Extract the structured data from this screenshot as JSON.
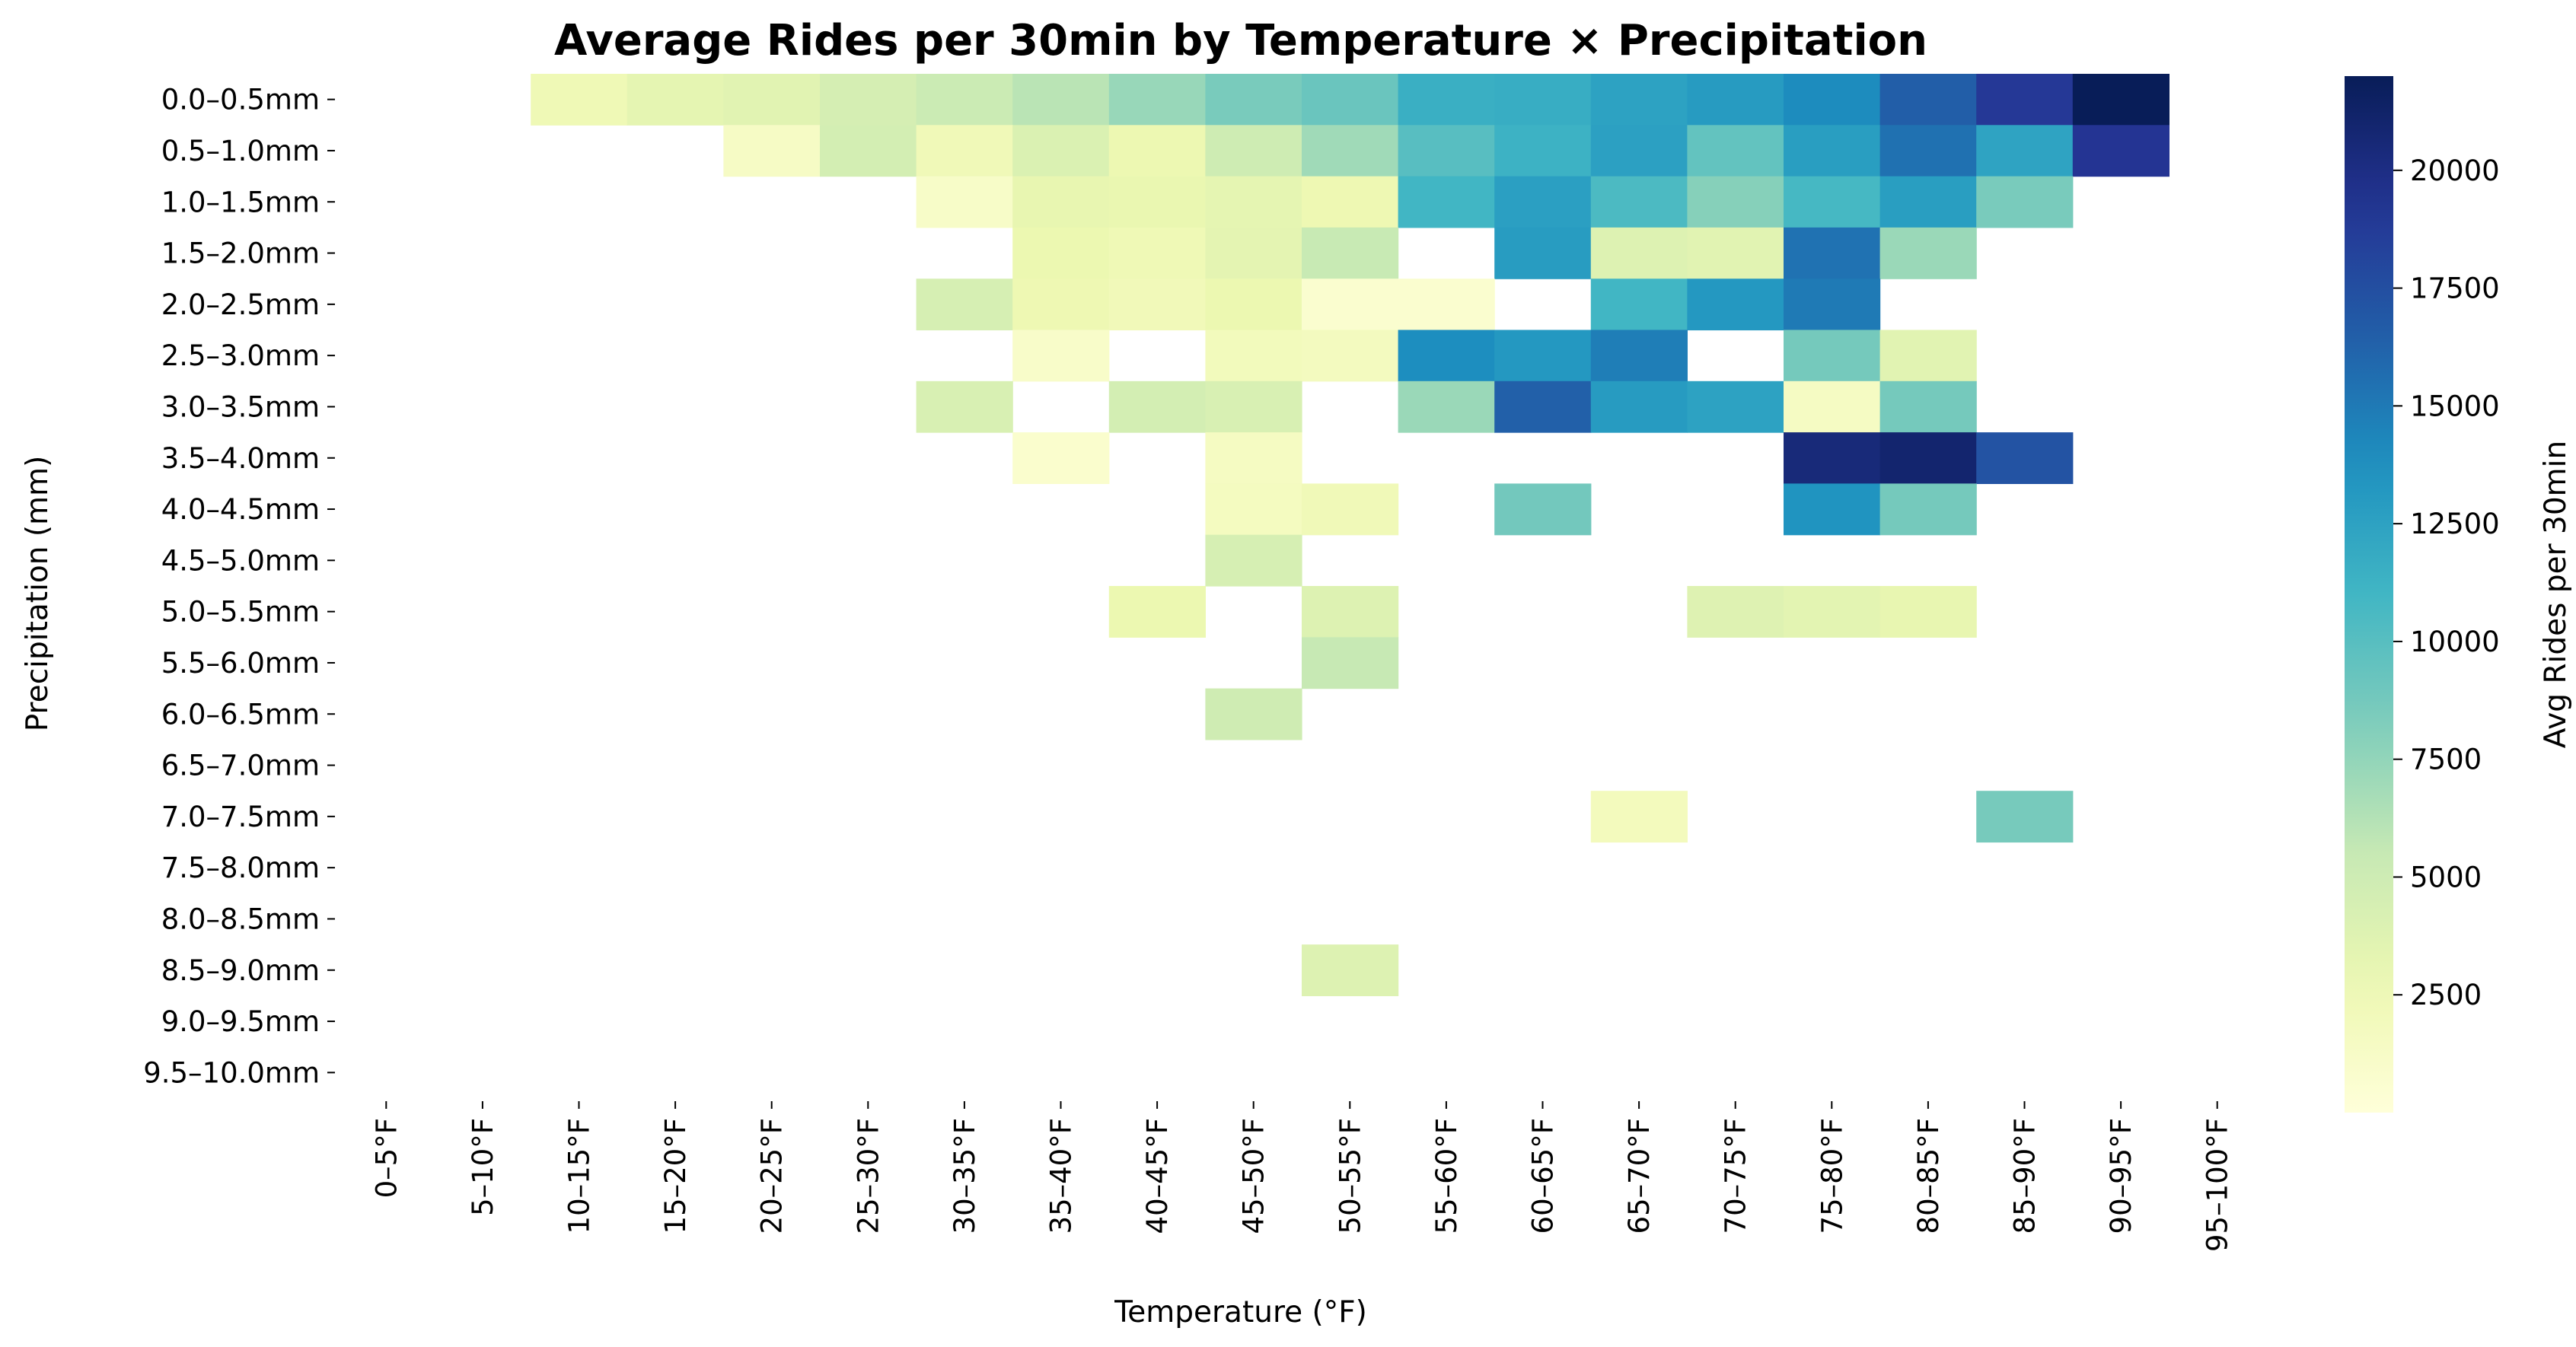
{
  "chart_data": {
    "type": "heatmap",
    "title": "Average Rides per 30min by Temperature × Precipitation",
    "xlabel": "Temperature (°F)",
    "ylabel": "Precipitation (mm)",
    "colorbar_label": "Avg Rides per 30min",
    "colormap": "YlGnBu",
    "color_range": [
      0,
      22000
    ],
    "colorbar_ticks": [
      2500,
      5000,
      7500,
      10000,
      12500,
      15000,
      17500,
      20000
    ],
    "x_categories": [
      "0–5°F",
      "5–10°F",
      "10–15°F",
      "15–20°F",
      "20–25°F",
      "25–30°F",
      "30–35°F",
      "35–40°F",
      "40–45°F",
      "45–50°F",
      "50–55°F",
      "55–60°F",
      "60–65°F",
      "65–70°F",
      "70–75°F",
      "75–80°F",
      "80–85°F",
      "85–90°F",
      "90–95°F",
      "95–100°F"
    ],
    "y_categories": [
      "0.0–0.5mm",
      "0.5–1.0mm",
      "1.0–1.5mm",
      "1.5–2.0mm",
      "2.0–2.5mm",
      "2.5–3.0mm",
      "3.0–3.5mm",
      "3.5–4.0mm",
      "4.0–4.5mm",
      "4.5–5.0mm",
      "5.0–5.5mm",
      "5.5–6.0mm",
      "6.0–6.5mm",
      "6.5–7.0mm",
      "7.0–7.5mm",
      "7.5–8.0mm",
      "8.0–8.5mm",
      "8.5–9.0mm",
      "9.0–9.5mm",
      "9.5–10.0mm"
    ],
    "values": [
      [
        null,
        null,
        2400,
        3300,
        3600,
        4500,
        5200,
        6000,
        7300,
        8500,
        9200,
        11500,
        11700,
        12500,
        13000,
        14000,
        16500,
        19000,
        22000,
        null
      ],
      [
        null,
        null,
        null,
        null,
        1400,
        4600,
        2300,
        4100,
        2700,
        5000,
        7000,
        10000,
        11300,
        12600,
        9500,
        12800,
        15500,
        12400,
        19300,
        null
      ],
      [
        null,
        null,
        null,
        null,
        null,
        null,
        1200,
        3100,
        3000,
        3300,
        2600,
        11000,
        12700,
        10500,
        8000,
        10800,
        12800,
        8500,
        null,
        null
      ],
      [
        null,
        null,
        null,
        null,
        null,
        null,
        null,
        2800,
        2400,
        3400,
        5400,
        null,
        12900,
        3900,
        3600,
        15400,
        7200,
        null,
        null,
        null
      ],
      [
        null,
        null,
        null,
        null,
        null,
        null,
        4400,
        2600,
        2200,
        2800,
        700,
        700,
        null,
        11000,
        13200,
        15000,
        null,
        null,
        null,
        null
      ],
      [
        null,
        null,
        null,
        null,
        null,
        null,
        null,
        1100,
        null,
        2000,
        1800,
        13900,
        13200,
        14800,
        null,
        8700,
        3600,
        null,
        null,
        null
      ],
      [
        null,
        null,
        null,
        null,
        null,
        null,
        4300,
        null,
        4600,
        4300,
        null,
        7200,
        16400,
        13000,
        12500,
        1500,
        8700,
        null,
        null,
        null
      ],
      [
        null,
        null,
        null,
        null,
        null,
        null,
        null,
        800,
        null,
        1600,
        null,
        null,
        null,
        null,
        null,
        20500,
        21000,
        17200,
        null,
        null
      ],
      [
        null,
        null,
        null,
        null,
        null,
        null,
        null,
        null,
        null,
        1700,
        2300,
        null,
        8800,
        null,
        null,
        13500,
        8700,
        null,
        null,
        null
      ],
      [
        null,
        null,
        null,
        null,
        null,
        null,
        null,
        null,
        null,
        4400,
        null,
        null,
        null,
        null,
        null,
        null,
        null,
        null,
        null,
        null
      ],
      [
        null,
        null,
        null,
        null,
        null,
        null,
        null,
        null,
        2800,
        null,
        3900,
        null,
        null,
        null,
        3800,
        3500,
        3100,
        null,
        null,
        null
      ],
      [
        null,
        null,
        null,
        null,
        null,
        null,
        null,
        null,
        null,
        null,
        5500,
        null,
        null,
        null,
        null,
        null,
        null,
        null,
        null,
        null
      ],
      [
        null,
        null,
        null,
        null,
        null,
        null,
        null,
        null,
        null,
        4900,
        null,
        null,
        null,
        null,
        null,
        null,
        null,
        null,
        null,
        null
      ],
      [
        null,
        null,
        null,
        null,
        null,
        null,
        null,
        null,
        null,
        null,
        null,
        null,
        null,
        null,
        null,
        null,
        null,
        null,
        null,
        null
      ],
      [
        null,
        null,
        null,
        null,
        null,
        null,
        null,
        null,
        null,
        null,
        null,
        null,
        null,
        1900,
        null,
        null,
        null,
        8600,
        null,
        null
      ],
      [
        null,
        null,
        null,
        null,
        null,
        null,
        null,
        null,
        null,
        null,
        null,
        null,
        null,
        null,
        null,
        null,
        null,
        null,
        null,
        null
      ],
      [
        null,
        null,
        null,
        null,
        null,
        null,
        null,
        null,
        null,
        null,
        null,
        null,
        null,
        null,
        null,
        null,
        null,
        null,
        null,
        null
      ],
      [
        null,
        null,
        null,
        null,
        null,
        null,
        null,
        null,
        null,
        null,
        3900,
        null,
        null,
        null,
        null,
        null,
        null,
        null,
        null,
        null
      ],
      [
        null,
        null,
        null,
        null,
        null,
        null,
        null,
        null,
        null,
        null,
        null,
        null,
        null,
        null,
        null,
        null,
        null,
        null,
        null,
        null
      ],
      [
        null,
        null,
        null,
        null,
        null,
        null,
        null,
        null,
        null,
        null,
        null,
        null,
        null,
        null,
        null,
        null,
        null,
        null,
        null,
        null
      ]
    ],
    "grid": false,
    "legend": "colorbar-right"
  }
}
